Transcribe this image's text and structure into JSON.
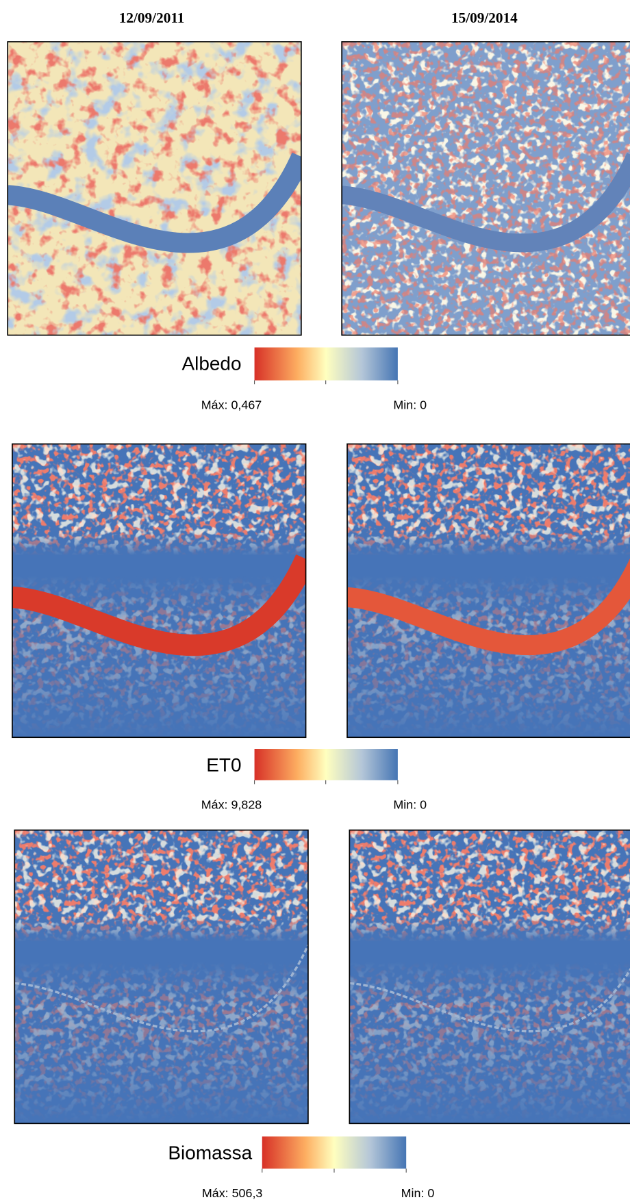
{
  "columns": [
    "12/09/2011",
    "15/09/2014"
  ],
  "legends": [
    {
      "label": "Albedo",
      "max": "Máx: 0,467",
      "min": "Min: 0"
    },
    {
      "label": "ET0",
      "max": "Máx: 9,828",
      "min": "Min: 0"
    },
    {
      "label": "Biomassa",
      "max": "Máx: 506,3",
      "min": "Min: 0"
    }
  ]
}
